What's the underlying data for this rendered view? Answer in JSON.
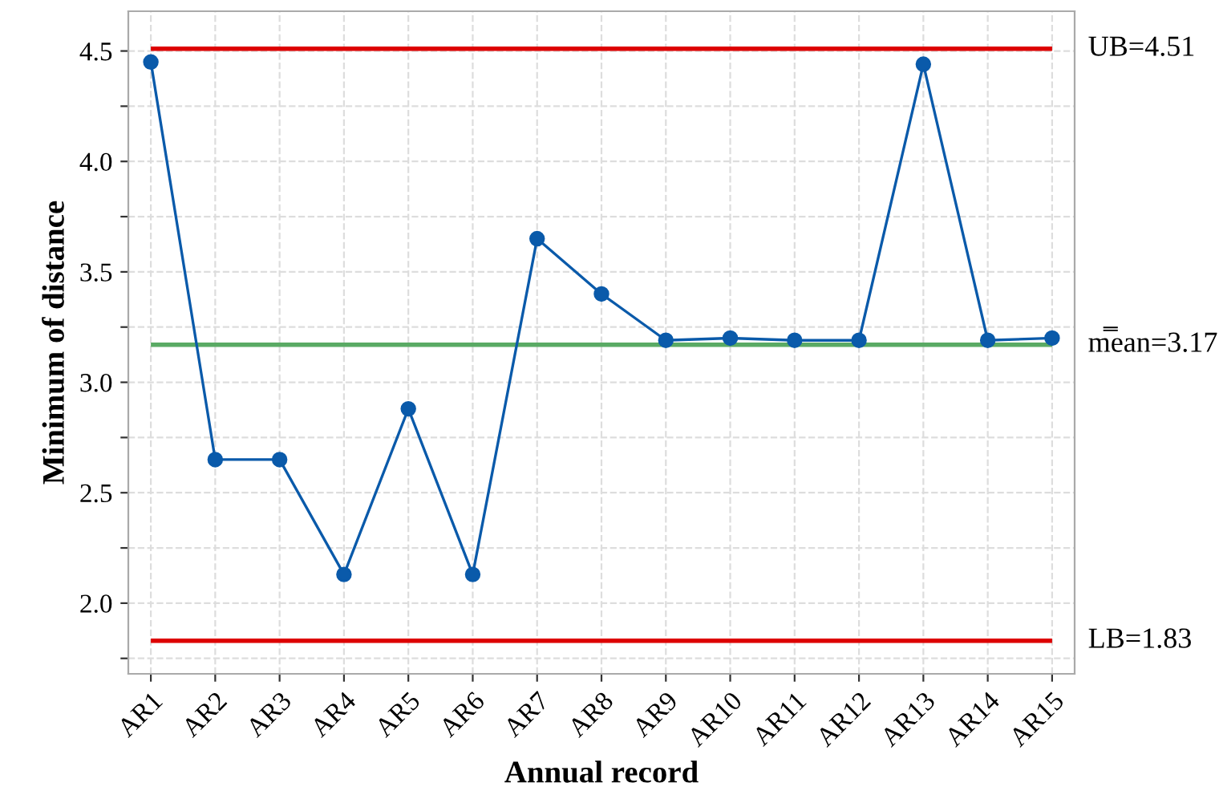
{
  "chart_data": {
    "type": "line",
    "xlabel": "Annual record",
    "ylabel": "Minimum of distance",
    "categories": [
      "AR1",
      "AR2",
      "AR3",
      "AR4",
      "AR5",
      "AR6",
      "AR7",
      "AR8",
      "AR9",
      "AR10",
      "AR11",
      "AR12",
      "AR13",
      "AR14",
      "AR15"
    ],
    "series": [
      {
        "color": "#0a5aaa",
        "values": [
          4.45,
          2.65,
          2.65,
          2.13,
          2.88,
          2.13,
          3.65,
          3.4,
          3.19,
          3.2,
          3.19,
          3.19,
          4.44,
          3.19,
          3.2
        ]
      }
    ],
    "ylim": [
      1.68,
      4.68
    ],
    "yticks": [
      {
        "value": 1.75,
        "label": null
      },
      {
        "value": 2,
        "label": "2.0"
      },
      {
        "value": 2.25,
        "label": null
      },
      2.5,
      {
        "value": 2.75,
        "label": null
      },
      {
        "value": 3,
        "label": "3.0"
      },
      {
        "value": 3.25,
        "label": null
      },
      3.5,
      {
        "value": 3.75,
        "label": null
      },
      {
        "value": 4,
        "label": "4.0"
      },
      {
        "value": 4.25,
        "label": null
      },
      4.5
    ],
    "ref_lines": [
      {
        "axis": "y",
        "value": 4.51,
        "label": "UB=4.51",
        "color": "#dd0000"
      },
      {
        "axis": "y",
        "value": 3.17,
        "label": "m̿ean=3.17",
        "color": "#5aaa64"
      },
      {
        "axis": "y",
        "value": 1.83,
        "label": "LB=1.83",
        "color": "#dd0000"
      }
    ],
    "grid": true,
    "marker": "circle",
    "line_style": "solid",
    "legend": false
  }
}
